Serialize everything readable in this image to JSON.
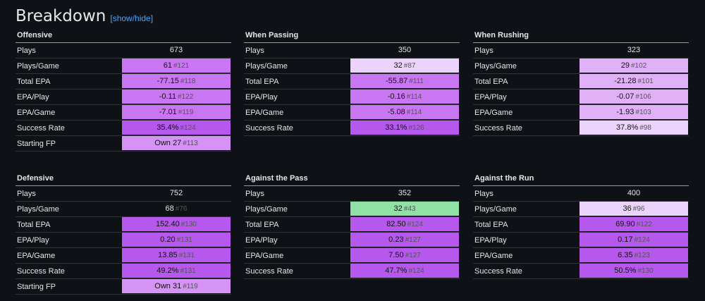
{
  "header": {
    "title": "Breakdown",
    "toggle": "[show/hide]"
  },
  "tables": [
    {
      "title": "Offensive",
      "rows": [
        {
          "label": "Plays",
          "value": "673",
          "rank": ""
        },
        {
          "label": "Plays/Game",
          "value": "61",
          "rank": "#121"
        },
        {
          "label": "Total EPA",
          "value": "-77.15",
          "rank": "#118"
        },
        {
          "label": "EPA/Play",
          "value": "-0.11",
          "rank": "#122"
        },
        {
          "label": "EPA/Game",
          "value": "-7.01",
          "rank": "#119"
        },
        {
          "label": "Success Rate",
          "value": "35.4%",
          "rank": "#124"
        },
        {
          "label": "Starting FP",
          "value": "Own 27",
          "rank": "#113"
        }
      ]
    },
    {
      "title": "When Passing",
      "rows": [
        {
          "label": "Plays",
          "value": "350",
          "rank": ""
        },
        {
          "label": "Plays/Game",
          "value": "32",
          "rank": "#87"
        },
        {
          "label": "Total EPA",
          "value": "-55.87",
          "rank": "#111"
        },
        {
          "label": "EPA/Play",
          "value": "-0.16",
          "rank": "#114"
        },
        {
          "label": "EPA/Game",
          "value": "-5.08",
          "rank": "#114"
        },
        {
          "label": "Success Rate",
          "value": "33.1%",
          "rank": "#126"
        }
      ]
    },
    {
      "title": "When Rushing",
      "rows": [
        {
          "label": "Plays",
          "value": "323",
          "rank": ""
        },
        {
          "label": "Plays/Game",
          "value": "29",
          "rank": "#102"
        },
        {
          "label": "Total EPA",
          "value": "-21.28",
          "rank": "#101"
        },
        {
          "label": "EPA/Play",
          "value": "-0.07",
          "rank": "#106"
        },
        {
          "label": "EPA/Game",
          "value": "-1.93",
          "rank": "#103"
        },
        {
          "label": "Success Rate",
          "value": "37.8%",
          "rank": "#98"
        }
      ]
    },
    {
      "title": "Defensive",
      "rows": [
        {
          "label": "Plays",
          "value": "752",
          "rank": ""
        },
        {
          "label": "Plays/Game",
          "value": "68",
          "rank": "#76"
        },
        {
          "label": "Total EPA",
          "value": "152.40",
          "rank": "#130"
        },
        {
          "label": "EPA/Play",
          "value": "0.20",
          "rank": "#131"
        },
        {
          "label": "EPA/Game",
          "value": "13.85",
          "rank": "#131"
        },
        {
          "label": "Success Rate",
          "value": "49.2%",
          "rank": "#131"
        },
        {
          "label": "Starting FP",
          "value": "Own 31",
          "rank": "#119"
        }
      ]
    },
    {
      "title": "Against the Pass",
      "rows": [
        {
          "label": "Plays",
          "value": "352",
          "rank": ""
        },
        {
          "label": "Plays/Game",
          "value": "32",
          "rank": "#43"
        },
        {
          "label": "Total EPA",
          "value": "82.50",
          "rank": "#124"
        },
        {
          "label": "EPA/Play",
          "value": "0.23",
          "rank": "#127"
        },
        {
          "label": "EPA/Game",
          "value": "7.50",
          "rank": "#127"
        },
        {
          "label": "Success Rate",
          "value": "47.7%",
          "rank": "#124"
        }
      ]
    },
    {
      "title": "Against the Run",
      "rows": [
        {
          "label": "Plays",
          "value": "400",
          "rank": ""
        },
        {
          "label": "Plays/Game",
          "value": "36",
          "rank": "#96"
        },
        {
          "label": "Total EPA",
          "value": "69.90",
          "rank": "#122"
        },
        {
          "label": "EPA/Play",
          "value": "0.17",
          "rank": "#124"
        },
        {
          "label": "EPA/Game",
          "value": "6.35",
          "rank": "#123"
        },
        {
          "label": "Success Rate",
          "value": "50.5%",
          "rank": "#130"
        }
      ]
    }
  ]
}
